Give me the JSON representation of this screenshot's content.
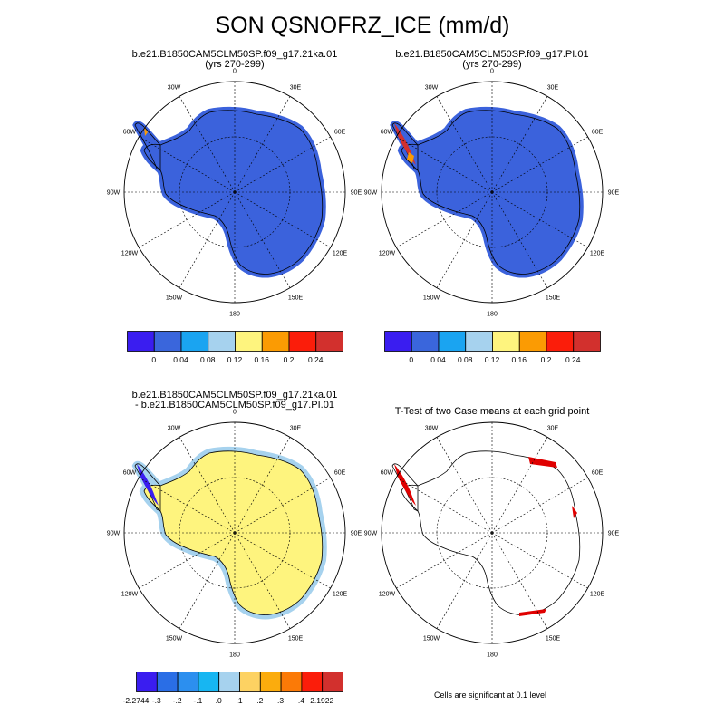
{
  "title": "SON QSNOFRZ_ICE (mm/d)",
  "lon_labels": [
    "0",
    "30E",
    "60E",
    "90E",
    "120E",
    "150E",
    "180",
    "150W",
    "120W",
    "90W",
    "60W",
    "30W"
  ],
  "panels": [
    {
      "id": "case1",
      "line1": "b.e21.B1850CAM5CLM50SP.f09_g17.21ka.01",
      "line2": "(yrs 270-299)",
      "fill": "#3b62dc"
    },
    {
      "id": "case2",
      "line1": "b.e21.B1850CAM5CLM50SP.f09_g17.PI.01",
      "line2": "(yrs 270-299)",
      "fill": "#3b62dc"
    },
    {
      "id": "diff",
      "line1": "b.e21.B1850CAM5CLM50SP.f09_g17.21ka.01",
      "line2": "- b.e21.B1850CAM5CLM50SP.f09_g17.PI.01",
      "fill": "#fef47e",
      "edge_fill": "#a6d2ee"
    },
    {
      "id": "ttest",
      "line1": "T-Test of two Case means at each grid point",
      "line2": "",
      "fill": "none"
    }
  ],
  "colorbar_top": {
    "colors": [
      "#3a1df0",
      "#3a66dc",
      "#1aa4f1",
      "#a6d2ee",
      "#fef47e",
      "#fb9b03",
      "#fb1d0a",
      "#d2302d"
    ],
    "labels": [
      "0",
      "0.04",
      "0.08",
      "0.12",
      "0.16",
      "0.2",
      "0.24"
    ]
  },
  "colorbar_diff": {
    "colors": [
      "#3a1df0",
      "#2a6ee6",
      "#2c8fef",
      "#17b6f2",
      "#a6d2ee",
      "#fdd262",
      "#fbac0d",
      "#fb7a07",
      "#fb1d0a",
      "#d2302d"
    ],
    "labels": [
      "-2.2744",
      "-.3",
      "-.2",
      "-.1",
      ".0",
      ".1",
      ".2",
      ".3",
      ".4",
      "2.1922"
    ]
  },
  "note": "Cells are significant at 0.1 level"
}
